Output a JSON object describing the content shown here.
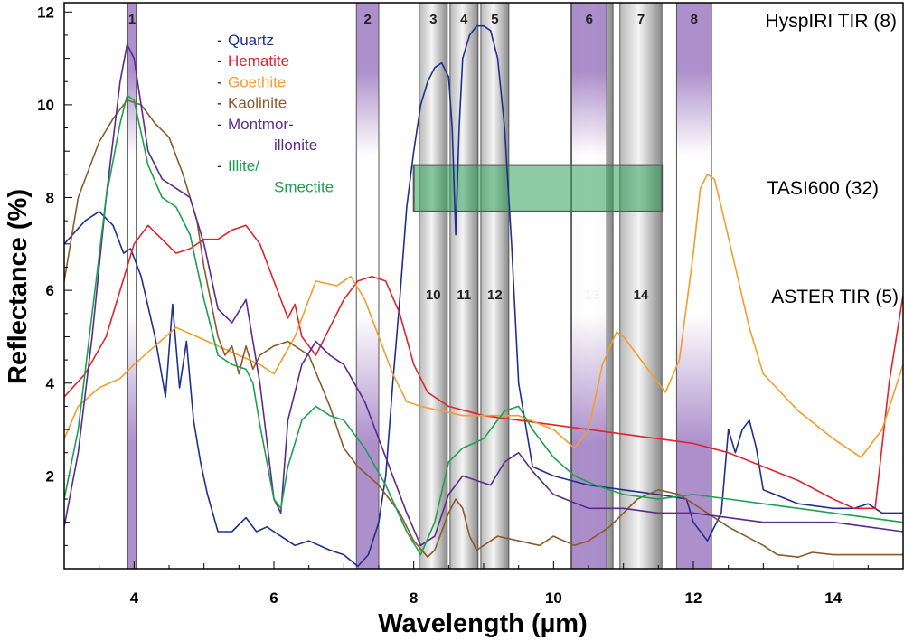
{
  "chart_data": {
    "type": "line",
    "title": "",
    "xlabel": "Wavelength (µm)",
    "ylabel": "Reflectance (%)",
    "xlim": [
      3,
      15
    ],
    "ylim": [
      0,
      12.2
    ],
    "xticks": [
      "4",
      "6",
      "8",
      "10",
      "12",
      "14"
    ],
    "yticks": [
      "2",
      "4",
      "6",
      "8",
      "10",
      "12"
    ],
    "series": [
      {
        "name": "Quartz",
        "color": "#1f2f8f",
        "x": [
          3.0,
          3.3,
          3.5,
          3.7,
          3.85,
          3.95,
          4.1,
          4.3,
          4.45,
          4.55,
          4.65,
          4.75,
          4.85,
          4.95,
          5.05,
          5.2,
          5.4,
          5.6,
          5.75,
          5.9,
          6.0,
          6.1,
          6.3,
          6.5,
          6.8,
          7.0,
          7.2,
          7.35,
          7.5,
          7.6,
          7.7,
          7.8,
          7.9,
          8.0,
          8.1,
          8.2,
          8.3,
          8.4,
          8.5,
          8.55,
          8.6,
          8.65,
          8.7,
          8.8,
          8.9,
          9.0,
          9.1,
          9.2,
          9.3,
          9.4,
          9.5,
          9.7,
          10.0,
          10.5,
          11.0,
          11.5,
          11.9,
          12.0,
          12.2,
          12.4,
          12.5,
          12.6,
          12.7,
          12.8,
          12.9,
          13.0,
          13.5,
          14.0,
          14.3,
          14.5,
          14.7,
          15.0
        ],
        "y": [
          7.0,
          7.5,
          7.7,
          7.4,
          6.8,
          6.9,
          6.3,
          5.0,
          3.7,
          5.7,
          3.9,
          4.9,
          3.2,
          2.3,
          1.6,
          0.8,
          0.8,
          1.1,
          0.8,
          0.9,
          0.8,
          0.7,
          0.5,
          0.6,
          0.4,
          0.3,
          0.05,
          0.3,
          1.0,
          2.0,
          4.0,
          5.8,
          7.8,
          9.0,
          10.0,
          10.5,
          10.8,
          10.9,
          10.6,
          9.5,
          7.2,
          9.5,
          11.0,
          11.5,
          11.7,
          11.7,
          11.6,
          11.0,
          9.5,
          7.0,
          4.0,
          2.2,
          2.0,
          1.8,
          1.7,
          1.6,
          1.5,
          1.0,
          0.6,
          1.2,
          3.0,
          2.5,
          3.0,
          3.2,
          2.6,
          1.7,
          1.4,
          1.3,
          1.3,
          1.4,
          1.2,
          1.2
        ]
      },
      {
        "name": "Hematite",
        "color": "#e0242a",
        "x": [
          3.0,
          3.3,
          3.6,
          3.8,
          4.0,
          4.2,
          4.4,
          4.6,
          4.8,
          5.0,
          5.2,
          5.4,
          5.6,
          5.8,
          6.0,
          6.2,
          6.3,
          6.4,
          6.6,
          6.8,
          7.0,
          7.2,
          7.4,
          7.6,
          7.8,
          8.0,
          8.2,
          8.5,
          9.0,
          9.5,
          10.0,
          10.5,
          11.0,
          11.5,
          12.0,
          12.5,
          13.0,
          13.5,
          14.0,
          14.3,
          14.6,
          14.8,
          15.0
        ],
        "y": [
          3.7,
          4.2,
          5.0,
          6.0,
          7.0,
          7.4,
          7.1,
          6.8,
          6.9,
          7.1,
          7.1,
          7.3,
          7.4,
          7.0,
          6.2,
          5.4,
          5.7,
          5.0,
          4.6,
          5.2,
          5.8,
          6.2,
          6.3,
          6.2,
          5.5,
          4.4,
          3.8,
          3.5,
          3.3,
          3.2,
          3.1,
          3.0,
          2.9,
          2.8,
          2.7,
          2.5,
          2.2,
          1.9,
          1.5,
          1.3,
          1.3,
          4.0,
          5.9
        ]
      },
      {
        "name": "Goethite",
        "color": "#f39d2a",
        "x": [
          3.0,
          3.2,
          3.5,
          3.8,
          4.0,
          4.3,
          4.6,
          4.9,
          5.2,
          5.5,
          5.8,
          6.0,
          6.3,
          6.6,
          6.9,
          7.1,
          7.3,
          7.5,
          7.7,
          7.9,
          8.1,
          8.4,
          8.7,
          9.0,
          9.5,
          10.0,
          10.3,
          10.5,
          10.7,
          10.9,
          11.0,
          11.2,
          11.4,
          11.6,
          11.8,
          12.0,
          12.1,
          12.2,
          12.3,
          12.4,
          12.6,
          12.8,
          13.0,
          13.5,
          14.0,
          14.4,
          14.7,
          15.0
        ],
        "y": [
          2.8,
          3.5,
          3.9,
          4.1,
          4.4,
          4.8,
          5.2,
          5.0,
          4.8,
          4.6,
          4.4,
          4.2,
          5.0,
          6.2,
          6.1,
          6.3,
          5.8,
          5.0,
          4.2,
          3.6,
          3.5,
          3.4,
          3.3,
          3.3,
          3.3,
          3.0,
          2.6,
          3.0,
          4.4,
          5.1,
          5.0,
          4.6,
          4.2,
          3.8,
          4.5,
          6.8,
          8.2,
          8.5,
          8.4,
          7.8,
          6.5,
          5.2,
          4.2,
          3.4,
          2.8,
          2.4,
          3.0,
          4.4
        ]
      },
      {
        "name": "Kaolinite",
        "color": "#8b5a2b",
        "x": [
          3.0,
          3.2,
          3.5,
          3.7,
          3.9,
          4.1,
          4.3,
          4.5,
          4.7,
          4.9,
          5.0,
          5.2,
          5.3,
          5.4,
          5.5,
          5.6,
          5.7,
          5.8,
          6.0,
          6.2,
          6.5,
          6.8,
          7.0,
          7.2,
          7.5,
          7.8,
          8.0,
          8.2,
          8.3,
          8.5,
          8.6,
          8.7,
          8.8,
          8.9,
          9.0,
          9.2,
          9.5,
          9.8,
          10.0,
          10.3,
          10.5,
          10.8,
          11.0,
          11.2,
          11.5,
          11.8,
          12.0,
          12.5,
          13.0,
          13.2,
          13.5,
          13.7,
          14.0,
          14.5,
          15.0
        ],
        "y": [
          6.2,
          8.0,
          9.2,
          9.7,
          10.1,
          10.0,
          9.6,
          9.3,
          8.5,
          7.5,
          6.5,
          5.0,
          4.6,
          4.8,
          4.2,
          4.8,
          4.3,
          4.6,
          4.8,
          4.9,
          4.6,
          3.5,
          2.6,
          2.2,
          1.8,
          1.2,
          0.6,
          0.25,
          0.4,
          1.2,
          1.5,
          1.3,
          0.7,
          0.4,
          0.5,
          0.7,
          0.6,
          0.5,
          0.7,
          0.5,
          0.6,
          0.9,
          1.2,
          1.5,
          1.7,
          1.6,
          1.4,
          0.9,
          0.5,
          0.3,
          0.25,
          0.35,
          0.3,
          0.3,
          0.3
        ]
      },
      {
        "name": "Montmorillonite",
        "color": "#5b2a90",
        "x": [
          3.0,
          3.2,
          3.4,
          3.6,
          3.8,
          3.9,
          4.0,
          4.2,
          4.4,
          4.6,
          4.8,
          5.0,
          5.2,
          5.4,
          5.6,
          5.8,
          6.0,
          6.1,
          6.2,
          6.4,
          6.6,
          6.8,
          7.0,
          7.3,
          7.6,
          7.9,
          8.1,
          8.3,
          8.5,
          8.7,
          8.9,
          9.1,
          9.3,
          9.5,
          9.7,
          10.0,
          10.5,
          11.0,
          11.5,
          12.0,
          12.5,
          13.0,
          13.5,
          14.0,
          14.5,
          15.0
        ],
        "y": [
          0.9,
          2.5,
          5.0,
          8.0,
          10.5,
          11.3,
          11.0,
          9.0,
          8.4,
          8.2,
          8.0,
          7.0,
          5.6,
          5.3,
          5.8,
          4.0,
          1.5,
          1.2,
          3.2,
          4.4,
          4.9,
          4.6,
          4.4,
          3.6,
          2.4,
          1.2,
          0.5,
          0.7,
          1.6,
          2.0,
          1.9,
          1.8,
          2.3,
          2.5,
          2.1,
          1.6,
          1.3,
          1.3,
          1.2,
          1.2,
          1.1,
          1.0,
          1.0,
          1.0,
          0.9,
          0.8
        ]
      },
      {
        "name": "Illite/ Smectite",
        "color": "#1aa150",
        "x": [
          3.0,
          3.2,
          3.4,
          3.6,
          3.8,
          3.9,
          4.0,
          4.2,
          4.4,
          4.6,
          4.8,
          5.0,
          5.2,
          5.4,
          5.6,
          5.7,
          5.8,
          6.0,
          6.1,
          6.2,
          6.4,
          6.6,
          6.8,
          7.0,
          7.3,
          7.6,
          7.9,
          8.1,
          8.3,
          8.5,
          8.7,
          9.0,
          9.3,
          9.5,
          9.7,
          10.0,
          10.3,
          10.6,
          11.0,
          11.5,
          12.0,
          12.5,
          13.0,
          13.5,
          14.0,
          14.5,
          15.0
        ],
        "y": [
          1.5,
          3.0,
          5.5,
          8.0,
          9.6,
          10.2,
          10.1,
          8.7,
          8.0,
          7.8,
          7.2,
          5.8,
          4.6,
          4.4,
          4.3,
          4.0,
          3.1,
          1.5,
          1.3,
          2.2,
          3.2,
          3.5,
          3.3,
          3.2,
          2.6,
          1.8,
          0.8,
          0.3,
          1.0,
          2.3,
          2.6,
          2.8,
          3.4,
          3.5,
          3.0,
          2.4,
          2.0,
          1.8,
          1.6,
          1.5,
          1.6,
          1.5,
          1.4,
          1.3,
          1.2,
          1.1,
          1.0
        ]
      }
    ],
    "hyspiri_bands": [
      {
        "label": "1",
        "x": 3.91,
        "width": 0.12
      },
      {
        "label": "2",
        "x": 7.18,
        "width": 0.32
      },
      {
        "label": "6",
        "x": 10.26,
        "width": 0.5
      },
      {
        "label": "8",
        "x": 11.76,
        "width": 0.5
      }
    ],
    "aster_bands": [
      {
        "label": "3",
        "top_label": "3",
        "bottom_label": "10",
        "x": 8.08,
        "width": 0.4
      },
      {
        "label": "4",
        "top_label": "4",
        "bottom_label": "11",
        "x": 8.52,
        "width": 0.4
      },
      {
        "label": "5",
        "top_label": "5",
        "bottom_label": "12",
        "x": 8.96,
        "width": 0.4
      },
      {
        "label": "13",
        "top_label": "",
        "bottom_label": "13",
        "x": 10.25,
        "width": 0.6
      },
      {
        "label": "7",
        "top_label": "7",
        "bottom_label": "14",
        "x": 10.95,
        "width": 0.6
      }
    ],
    "tasi_band": {
      "x0": 8.0,
      "x1": 11.55,
      "y0": 7.7,
      "y1": 8.7
    },
    "legend": {
      "items": [
        {
          "dash": "-",
          "lines": [
            "Quartz"
          ],
          "color": "#1f2f8f"
        },
        {
          "dash": "-",
          "lines": [
            "Hematite"
          ],
          "color": "#e0242a"
        },
        {
          "dash": "-",
          "lines": [
            "Goethite"
          ],
          "color": "#f39d2a"
        },
        {
          "dash": "-",
          "lines": [
            "Kaolinite"
          ],
          "color": "#8b5a2b"
        },
        {
          "dash": "-",
          "lines": [
            "Montmor-",
            "illonite"
          ],
          "color": "#5b2a90"
        },
        {
          "dash": "-",
          "lines": [
            "Illite/",
            "Smectite"
          ],
          "color": "#1aa150"
        }
      ]
    },
    "sensor_labels": [
      {
        "text": "HyspIRI TIR (8)",
        "color": "#7b3fa0"
      },
      {
        "text": "TASI600 (32)",
        "color": "#2fb866"
      },
      {
        "text": "ASTER TIR (5)",
        "color": "#8c8c8c"
      }
    ]
  }
}
